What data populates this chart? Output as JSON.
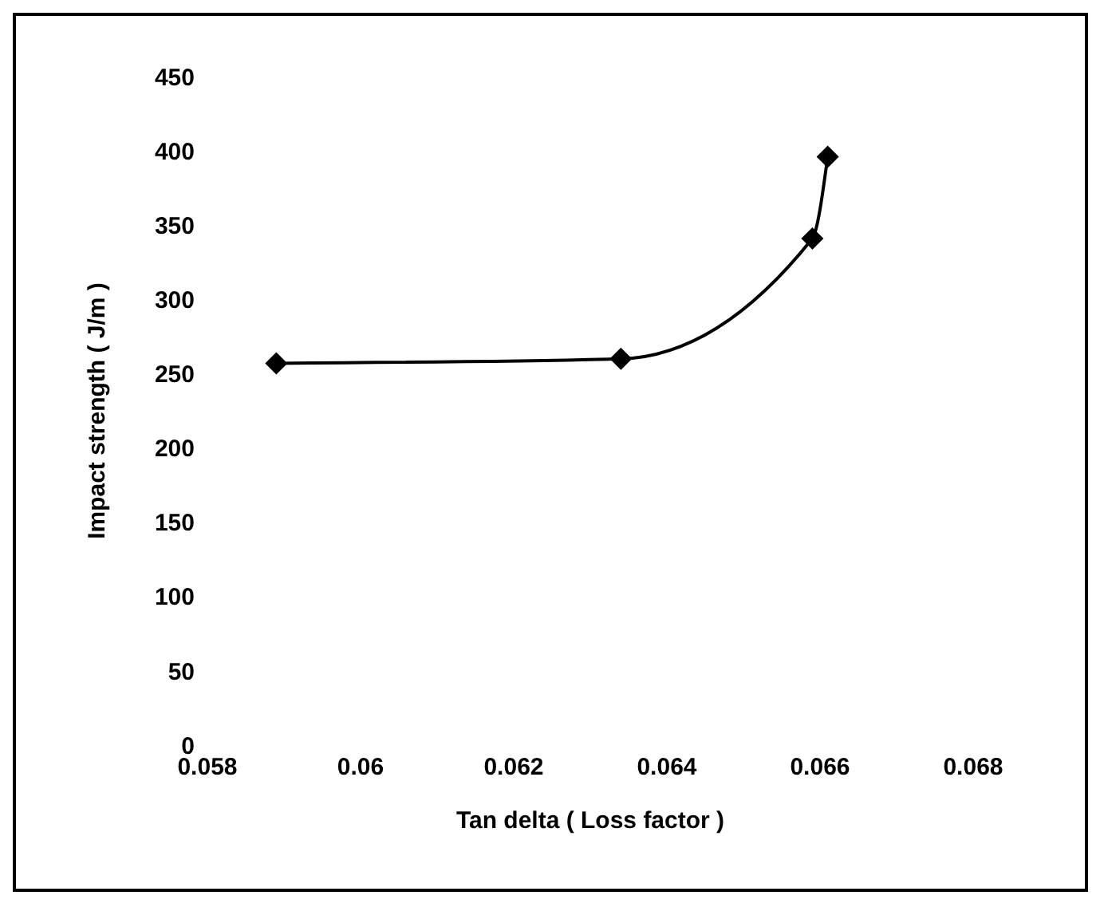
{
  "chart_data": {
    "type": "line",
    "xlabel": "Tan delta ( Loss factor )",
    "ylabel": "Impact strength ( J/m )",
    "x": [
      0.0589,
      0.0634,
      0.0659,
      0.0661
    ],
    "series": [
      {
        "color": "#000000",
        "values": [
          257,
          260,
          341,
          396
        ]
      }
    ],
    "xlim": [
      0.058,
      0.068
    ],
    "xticks": [
      0.058,
      0.06,
      0.062,
      0.064,
      0.066,
      0.068
    ],
    "ylim": [
      0,
      450
    ],
    "yticks": [
      0,
      50,
      100,
      150,
      200,
      250,
      300,
      350,
      400,
      450
    ],
    "marker": "diamond",
    "line_style": "solid",
    "grid": false,
    "legend": false
  }
}
